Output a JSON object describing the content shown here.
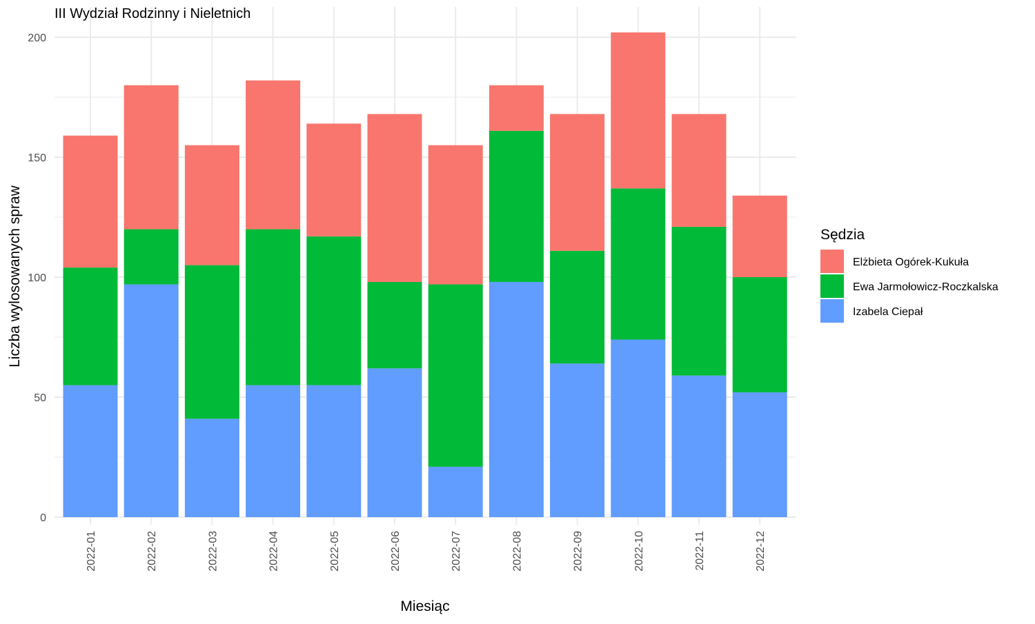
{
  "chart_data": {
    "type": "bar",
    "stacked": true,
    "title": "III Wydział Rodzinny i Nieletnich",
    "xlabel": "Miesiąc",
    "ylabel": "Liczba wylosowanych spraw",
    "ylim": [
      0,
      210
    ],
    "yticks": [
      0,
      50,
      100,
      150,
      200
    ],
    "grid": true,
    "legend": {
      "title": "Sędzia",
      "position": "right"
    },
    "categories": [
      "2022-01",
      "2022-02",
      "2022-03",
      "2022-04",
      "2022-05",
      "2022-06",
      "2022-07",
      "2022-08",
      "2022-09",
      "2022-10",
      "2022-11",
      "2022-12"
    ],
    "series": [
      {
        "name": "Elżbieta Ogórek-Kukuła",
        "color": "#F8766D",
        "values": [
          55,
          60,
          50,
          62,
          47,
          70,
          58,
          19,
          57,
          65,
          47,
          34
        ]
      },
      {
        "name": "Ewa Jarmołowicz-Roczkalska",
        "color": "#00BA38",
        "values": [
          49,
          23,
          64,
          65,
          62,
          36,
          76,
          63,
          47,
          63,
          62,
          48
        ]
      },
      {
        "name": "Izabela Ciepał",
        "color": "#619CFF",
        "values": [
          55,
          97,
          41,
          55,
          55,
          62,
          21,
          98,
          64,
          74,
          59,
          52
        ]
      }
    ]
  }
}
